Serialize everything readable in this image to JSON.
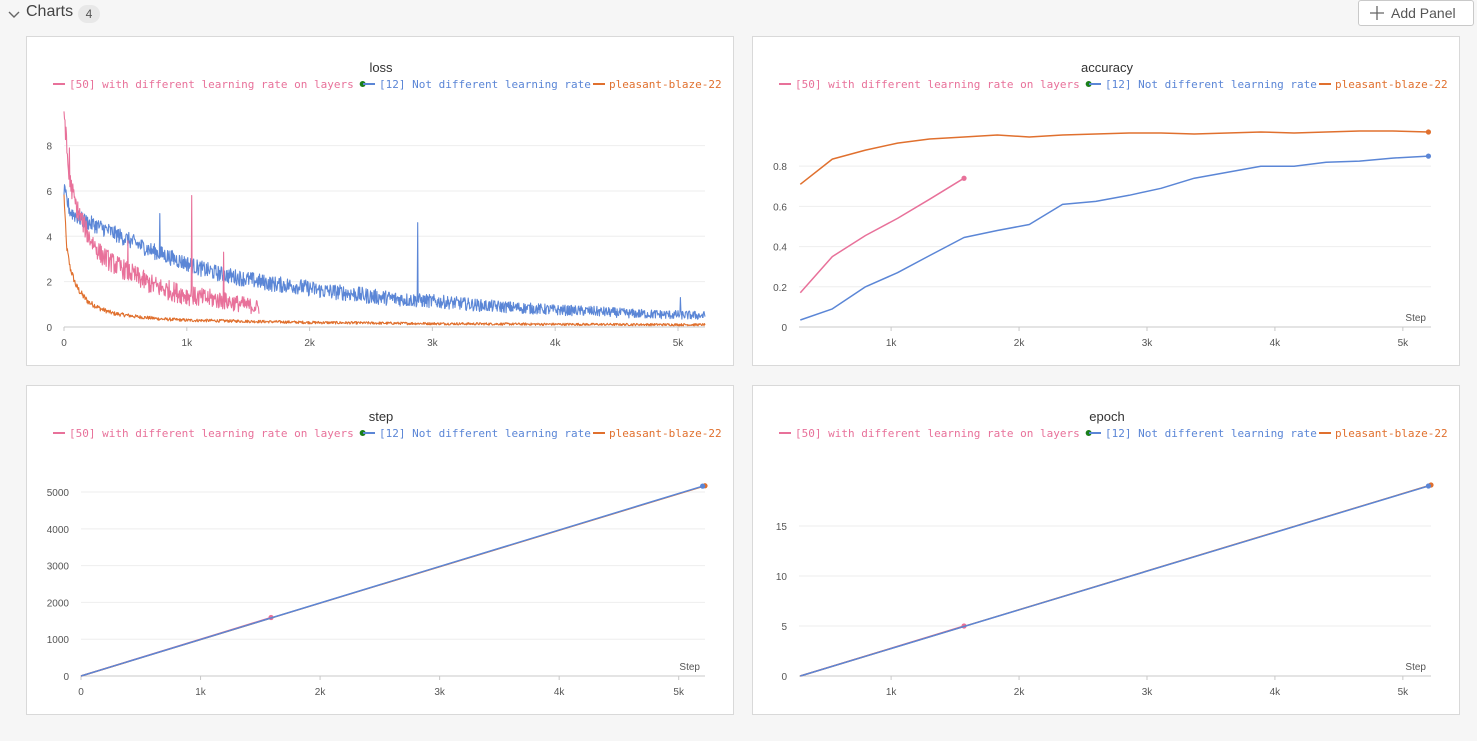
{
  "section": {
    "title": "Charts",
    "count": "4",
    "add_panel_label": "Add Panel"
  },
  "legend": [
    {
      "label": "[50] with different learning rate on layers",
      "color": "#e8719a",
      "dot_color": "#1a7f1a"
    },
    {
      "label": "[12] Not different learning rate",
      "color": "#5b86d6"
    },
    {
      "label": "pleasant-blaze-22",
      "color": "#e0702e"
    }
  ],
  "chart_data": [
    {
      "type": "line",
      "title": "loss",
      "xlabel": "",
      "xlim": [
        0,
        5220
      ],
      "ylim": [
        0,
        8.6
      ],
      "xticks": [
        0,
        1000,
        2000,
        3000,
        4000,
        5000
      ],
      "xtick_labels": [
        "0",
        "1k",
        "2k",
        "3k",
        "4k",
        "5k"
      ],
      "yticks": [
        0,
        2,
        4,
        6,
        8
      ],
      "ytick_labels": [
        "0",
        "2",
        "4",
        "6",
        "8"
      ],
      "noisy": true,
      "series": [
        {
          "name": "[50] with different learning rate on layers",
          "x": [
            0,
            40,
            100,
            200,
            300,
            400,
            500,
            600,
            700,
            800,
            900,
            1000,
            1100,
            1200,
            1300,
            1400,
            1500,
            1590
          ],
          "y": [
            9.6,
            6.6,
            5.3,
            4.0,
            3.2,
            2.8,
            2.5,
            2.2,
            1.9,
            1.7,
            1.55,
            1.4,
            1.3,
            1.25,
            1.15,
            1.05,
            0.95,
            0.85
          ],
          "noise": 0.45,
          "spikes": [
            [
              45,
              7.9
            ],
            [
              520,
              3.8
            ],
            [
              790,
              4.0
            ],
            [
              1040,
              5.8
            ],
            [
              1300,
              3.3
            ],
            [
              1570,
              3.1
            ]
          ]
        },
        {
          "name": "[12] Not different learning rate",
          "x": [
            0,
            50,
            150,
            300,
            500,
            700,
            900,
            1100,
            1300,
            1500,
            1700,
            1900,
            2100,
            2300,
            2500,
            2800,
            3100,
            3400,
            3700,
            4000,
            4300,
            4600,
            4900,
            5220
          ],
          "y": [
            6.0,
            5.1,
            4.7,
            4.4,
            3.9,
            3.4,
            3.0,
            2.6,
            2.3,
            2.1,
            1.9,
            1.8,
            1.6,
            1.5,
            1.35,
            1.2,
            1.1,
            0.95,
            0.85,
            0.75,
            0.7,
            0.6,
            0.55,
            0.5
          ],
          "noise": 0.35,
          "spikes": [
            [
              780,
              5.0
            ],
            [
              2050,
              2.6
            ],
            [
              2880,
              4.6
            ],
            [
              5020,
              1.3
            ]
          ]
        },
        {
          "name": "pleasant-blaze-22",
          "x": [
            0,
            20,
            50,
            100,
            150,
            200,
            300,
            400,
            600,
            800,
            1000,
            1500,
            2000,
            3000,
            4000,
            5220
          ],
          "y": [
            5.8,
            3.6,
            2.6,
            1.8,
            1.4,
            1.1,
            0.8,
            0.6,
            0.45,
            0.35,
            0.3,
            0.25,
            0.2,
            0.15,
            0.12,
            0.1
          ],
          "noise": 0.15,
          "spikes": []
        }
      ]
    },
    {
      "type": "line",
      "title": "accuracy",
      "xlabel": "Step",
      "xlim": [
        280,
        5220
      ],
      "ylim": [
        0,
        0.97
      ],
      "xticks": [
        1000,
        2000,
        3000,
        4000,
        5000
      ],
      "xtick_labels": [
        "1k",
        "2k",
        "3k",
        "4k",
        "5k"
      ],
      "yticks": [
        0,
        0.2,
        0.4,
        0.6,
        0.8
      ],
      "ytick_labels": [
        "0",
        "0.2",
        "0.4",
        "0.6",
        "0.8"
      ],
      "noisy": false,
      "series": [
        {
          "name": "[50] with different learning rate on layers",
          "x": [
            290,
            540,
            800,
            1050,
            1300,
            1570
          ],
          "y": [
            0.17,
            0.35,
            0.455,
            0.54,
            0.635,
            0.74
          ],
          "end_marker": true
        },
        {
          "name": "[12] Not different learning rate",
          "x": [
            290,
            540,
            800,
            1050,
            1300,
            1570,
            1830,
            2080,
            2340,
            2600,
            2860,
            3110,
            3370,
            3630,
            3890,
            4150,
            4400,
            4660,
            4920,
            5200
          ],
          "y": [
            0.035,
            0.09,
            0.2,
            0.27,
            0.355,
            0.445,
            0.48,
            0.51,
            0.61,
            0.625,
            0.655,
            0.69,
            0.74,
            0.77,
            0.8,
            0.8,
            0.82,
            0.825,
            0.84,
            0.85
          ],
          "end_marker": true
        },
        {
          "name": "pleasant-blaze-22",
          "x": [
            290,
            540,
            800,
            1050,
            1300,
            1570,
            1830,
            2080,
            2340,
            2600,
            2860,
            3110,
            3370,
            3630,
            3890,
            4150,
            4400,
            4660,
            4920,
            5200
          ],
          "y": [
            0.71,
            0.835,
            0.88,
            0.915,
            0.935,
            0.945,
            0.955,
            0.945,
            0.955,
            0.96,
            0.965,
            0.965,
            0.96,
            0.965,
            0.97,
            0.965,
            0.97,
            0.975,
            0.975,
            0.97
          ],
          "end_marker": true
        }
      ]
    },
    {
      "type": "line",
      "title": "step",
      "xlabel": "Step",
      "xlim": [
        0,
        5220
      ],
      "ylim": [
        0,
        5300
      ],
      "xticks": [
        0,
        1000,
        2000,
        3000,
        4000,
        5000
      ],
      "xtick_labels": [
        "0",
        "1k",
        "2k",
        "3k",
        "4k",
        "5k"
      ],
      "yticks": [
        0,
        1000,
        2000,
        3000,
        4000,
        5000
      ],
      "ytick_labels": [
        "0",
        "1000",
        "2000",
        "3000",
        "4000",
        "5000"
      ],
      "noisy": false,
      "series": [
        {
          "name": "[50] with different learning rate on layers",
          "x": [
            0,
            1590
          ],
          "y": [
            0,
            1590
          ],
          "end_marker": true
        },
        {
          "name": "pleasant-blaze-22",
          "x": [
            0,
            5220
          ],
          "y": [
            0,
            5170
          ],
          "end_marker": true
        },
        {
          "name": "[12] Not different learning rate",
          "x": [
            0,
            5200
          ],
          "y": [
            0,
            5160
          ],
          "end_marker": true
        }
      ]
    },
    {
      "type": "line",
      "title": "epoch",
      "xlabel": "Step",
      "xlim": [
        280,
        5220
      ],
      "ylim": [
        0,
        19.5
      ],
      "xticks": [
        1000,
        2000,
        3000,
        4000,
        5000
      ],
      "xtick_labels": [
        "1k",
        "2k",
        "3k",
        "4k",
        "5k"
      ],
      "yticks": [
        0,
        5,
        10,
        15
      ],
      "ytick_labels": [
        "0",
        "5",
        "10",
        "15"
      ],
      "noisy": false,
      "series": [
        {
          "name": "[50] with different learning rate on layers",
          "x": [
            290,
            1570
          ],
          "y": [
            0,
            5
          ],
          "end_marker": true
        },
        {
          "name": "pleasant-blaze-22",
          "x": [
            290,
            5220
          ],
          "y": [
            0,
            19.1
          ],
          "end_marker": true
        },
        {
          "name": "[12] Not different learning rate",
          "x": [
            290,
            5200
          ],
          "y": [
            0,
            19.0
          ],
          "end_marker": true
        }
      ]
    }
  ]
}
